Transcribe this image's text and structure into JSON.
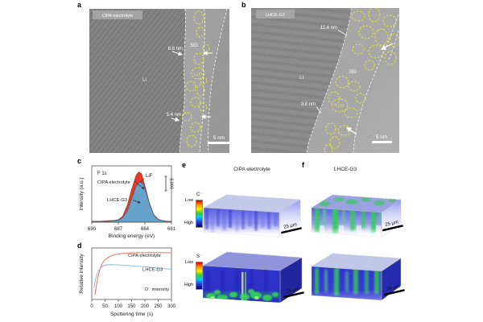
{
  "panels": {
    "a": {
      "letter": "a",
      "chip": "CIPA electrolyte",
      "li": "Li",
      "sei": "SEI",
      "li2o": "Li₂O",
      "t_top": "6.8 nm",
      "t_bottom": "5.4 nm",
      "scalebar": "5 nm"
    },
    "b": {
      "letter": "b",
      "chip": "LHCE-G3",
      "li": "Li",
      "sei": "SEI",
      "li2o": "Li₂O",
      "t_top": "11.4 nm",
      "t_bottom": "9.8 nm",
      "scalebar": "5 nm"
    },
    "c": {
      "letter": "c",
      "core_level": "F 1s",
      "label_cipa": "CIPA electrolyte",
      "label_lhce": "LHCE-G3",
      "peak_label": "LiF",
      "scale_marker": "3,000",
      "xlabel": "Binding energy (eV)",
      "ylabel": "Intensity (a.u.)"
    },
    "d": {
      "letter": "d",
      "label_cipa": "CIPA electrolyte",
      "label_lhce": "LHCE-G3",
      "note": "O⁻ intensity",
      "xlabel": "Sputtering time (s)",
      "ylabel": "Relative intensity"
    },
    "e": {
      "letter": "e",
      "title": "CIPA electrolyte",
      "ion_row1": "C⁻",
      "ion_row2": "S⁻",
      "low": "Low",
      "high": "High",
      "scalebar": "25 μm"
    },
    "f": {
      "letter": "f",
      "title": "LHCE-G3",
      "scalebar": "25 μm"
    }
  },
  "chart_data": [
    {
      "panel": "c",
      "type": "area",
      "title": "F 1s",
      "xlabel": "Binding energy (eV)",
      "ylabel": "Intensity (a.u.)",
      "xlim": [
        690,
        681
      ],
      "ylim": [
        0,
        1.12
      ],
      "x_ticks": [
        690,
        687,
        684,
        681
      ],
      "x_axis_reversed": true,
      "peak_label": "LiF",
      "peak_center_eV": 684.7,
      "intensity_scale_marker": "3,000",
      "grid": false,
      "series": [
        {
          "name": "CIPA electrolyte",
          "color": "#e23a2b",
          "edge": "#9c2318",
          "fill_opacity": 1,
          "points": [
            [
              690,
              0.02
            ],
            [
              689,
              0.02
            ],
            [
              688,
              0.03
            ],
            [
              687.5,
              0.035
            ],
            [
              687,
              0.05
            ],
            [
              686.5,
              0.12
            ],
            [
              686,
              0.33
            ],
            [
              685.5,
              0.65
            ],
            [
              685,
              0.93
            ],
            [
              684.7,
              1.0
            ],
            [
              684.4,
              0.97
            ],
            [
              684,
              0.73
            ],
            [
              683.5,
              0.39
            ],
            [
              683,
              0.15
            ],
            [
              682.5,
              0.06
            ],
            [
              682,
              0.03
            ],
            [
              681.5,
              0.02
            ],
            [
              681,
              0.02
            ]
          ]
        },
        {
          "name": "LHCE-G3",
          "color": "#66a2ca",
          "edge": "#2e6286",
          "fill_opacity": 1,
          "points": [
            [
              690,
              0.015
            ],
            [
              689,
              0.015
            ],
            [
              688,
              0.02
            ],
            [
              687.5,
              0.025
            ],
            [
              687,
              0.04
            ],
            [
              686.5,
              0.09
            ],
            [
              686,
              0.22
            ],
            [
              685.5,
              0.46
            ],
            [
              685,
              0.71
            ],
            [
              684.6,
              0.8
            ],
            [
              684.2,
              0.76
            ],
            [
              684,
              0.67
            ],
            [
              683.5,
              0.37
            ],
            [
              683,
              0.14
            ],
            [
              682.5,
              0.05
            ],
            [
              682,
              0.025
            ],
            [
              681.5,
              0.015
            ],
            [
              681,
              0.015
            ]
          ]
        }
      ]
    },
    {
      "panel": "d",
      "type": "line",
      "xlabel": "Sputtering time (s)",
      "ylabel": "Relative intensity",
      "xlim": [
        0,
        300
      ],
      "ylim": [
        0,
        1.05
      ],
      "x_ticks": [
        0,
        50,
        100,
        150,
        200,
        250,
        300
      ],
      "annotation": "O⁻ intensity",
      "grid": false,
      "series": [
        {
          "name": "CIPA electrolyte",
          "color": "#e4826f",
          "points": [
            [
              12,
              0.1
            ],
            [
              18,
              0.3
            ],
            [
              25,
              0.5
            ],
            [
              32,
              0.64
            ],
            [
              40,
              0.74
            ],
            [
              50,
              0.81
            ],
            [
              65,
              0.87
            ],
            [
              85,
              0.91
            ],
            [
              110,
              0.935
            ],
            [
              150,
              0.95
            ],
            [
              200,
              0.955
            ],
            [
              250,
              0.955
            ],
            [
              300,
              0.95
            ]
          ]
        },
        {
          "name": "LHCE-G3",
          "color": "#8fc3da",
          "points": [
            [
              8,
              0.24
            ],
            [
              14,
              0.4
            ],
            [
              20,
              0.52
            ],
            [
              28,
              0.61
            ],
            [
              38,
              0.67
            ],
            [
              50,
              0.7
            ],
            [
              70,
              0.71
            ],
            [
              100,
              0.705
            ],
            [
              140,
              0.69
            ],
            [
              180,
              0.672
            ],
            [
              220,
              0.655
            ],
            [
              260,
              0.635
            ],
            [
              300,
              0.615
            ]
          ]
        }
      ]
    }
  ]
}
